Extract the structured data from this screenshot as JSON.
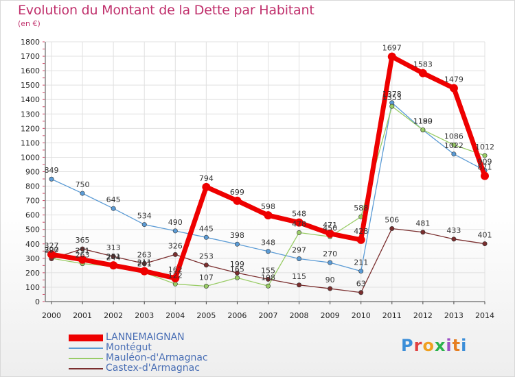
{
  "header": {
    "title": "Evolution du Montant de la Dette par Habitant",
    "unit": "(en €)"
  },
  "logo": {
    "text": "Proxiti",
    "colors": [
      "#3b8ed8",
      "#e04040",
      "#f0a020",
      "#2bb24c",
      "#9b4fc4",
      "#e67e22",
      "#3b8ed8"
    ]
  },
  "chart_data": {
    "type": "line",
    "categories": [
      "2000",
      "2001",
      "2002",
      "2003",
      "2004",
      "2005",
      "2006",
      "2007",
      "2008",
      "2009",
      "2010",
      "2011",
      "2012",
      "2013",
      "2014"
    ],
    "ylim": [
      0,
      1800
    ],
    "yticks": [
      0,
      100,
      200,
      300,
      400,
      500,
      600,
      700,
      800,
      900,
      1000,
      1100,
      1200,
      1300,
      1400,
      1500,
      1600,
      1700,
      1800
    ],
    "grid": true,
    "legend_position": "bottom-left",
    "series": [
      {
        "name": "Montégut",
        "color": "#5b9bd5",
        "values": [
          849,
          750,
          645,
          534,
          490,
          445,
          398,
          348,
          297,
          270,
          211,
          1378,
          1189,
          1022,
          909
        ],
        "labels": [
          "849",
          "750",
          "645",
          "534",
          "490",
          "445",
          "398",
          "348",
          "297",
          "270",
          "211",
          "1378",
          "1189",
          "1022",
          "909"
        ]
      },
      {
        "name": "Mauléon-d'Armagnac",
        "color": "#99cc66",
        "values": [
          300,
          263,
          244,
          201,
          122,
          107,
          165,
          108,
          478,
          450,
          588,
          1353,
          1190,
          1086,
          1012
        ],
        "labels": [
          "300",
          "263",
          "244",
          "201",
          "122",
          "107",
          "165",
          "108",
          "478",
          "450",
          "588",
          "1353",
          "1190",
          "1086",
          "1012"
        ]
      },
      {
        "name": "Castex-d'Armagnac",
        "color": "#7a2e2e",
        "values": [
          297,
          365,
          313,
          263,
          326,
          253,
          199,
          155,
          115,
          90,
          63,
          506,
          481,
          433,
          401
        ],
        "labels": [
          "297",
          "365",
          "313",
          "263",
          "326",
          "253",
          "199",
          "155",
          "115",
          "90",
          "63",
          "506",
          "481",
          "433",
          "401"
        ]
      },
      {
        "name": "LANNEMAIGNAN",
        "color": "#ee0000",
        "values": [
          327,
          291,
          251,
          211,
          162,
          794,
          699,
          598,
          548,
          471,
          428,
          1697,
          1583,
          1479,
          871
        ],
        "labels": [
          "327",
          "291",
          "251",
          "211",
          "162",
          "794",
          "699",
          "598",
          "548",
          "471",
          "428",
          "1697",
          "1583",
          "1479",
          "871"
        ]
      }
    ]
  },
  "legend": [
    {
      "label": "LANNEMAIGNAN",
      "color": "#ee0000"
    },
    {
      "label": "Montégut",
      "color": "#5b9bd5"
    },
    {
      "label": "Mauléon-d'Armagnac",
      "color": "#99cc66"
    },
    {
      "label": "Castex-d'Armagnac",
      "color": "#7a2e2e"
    }
  ]
}
